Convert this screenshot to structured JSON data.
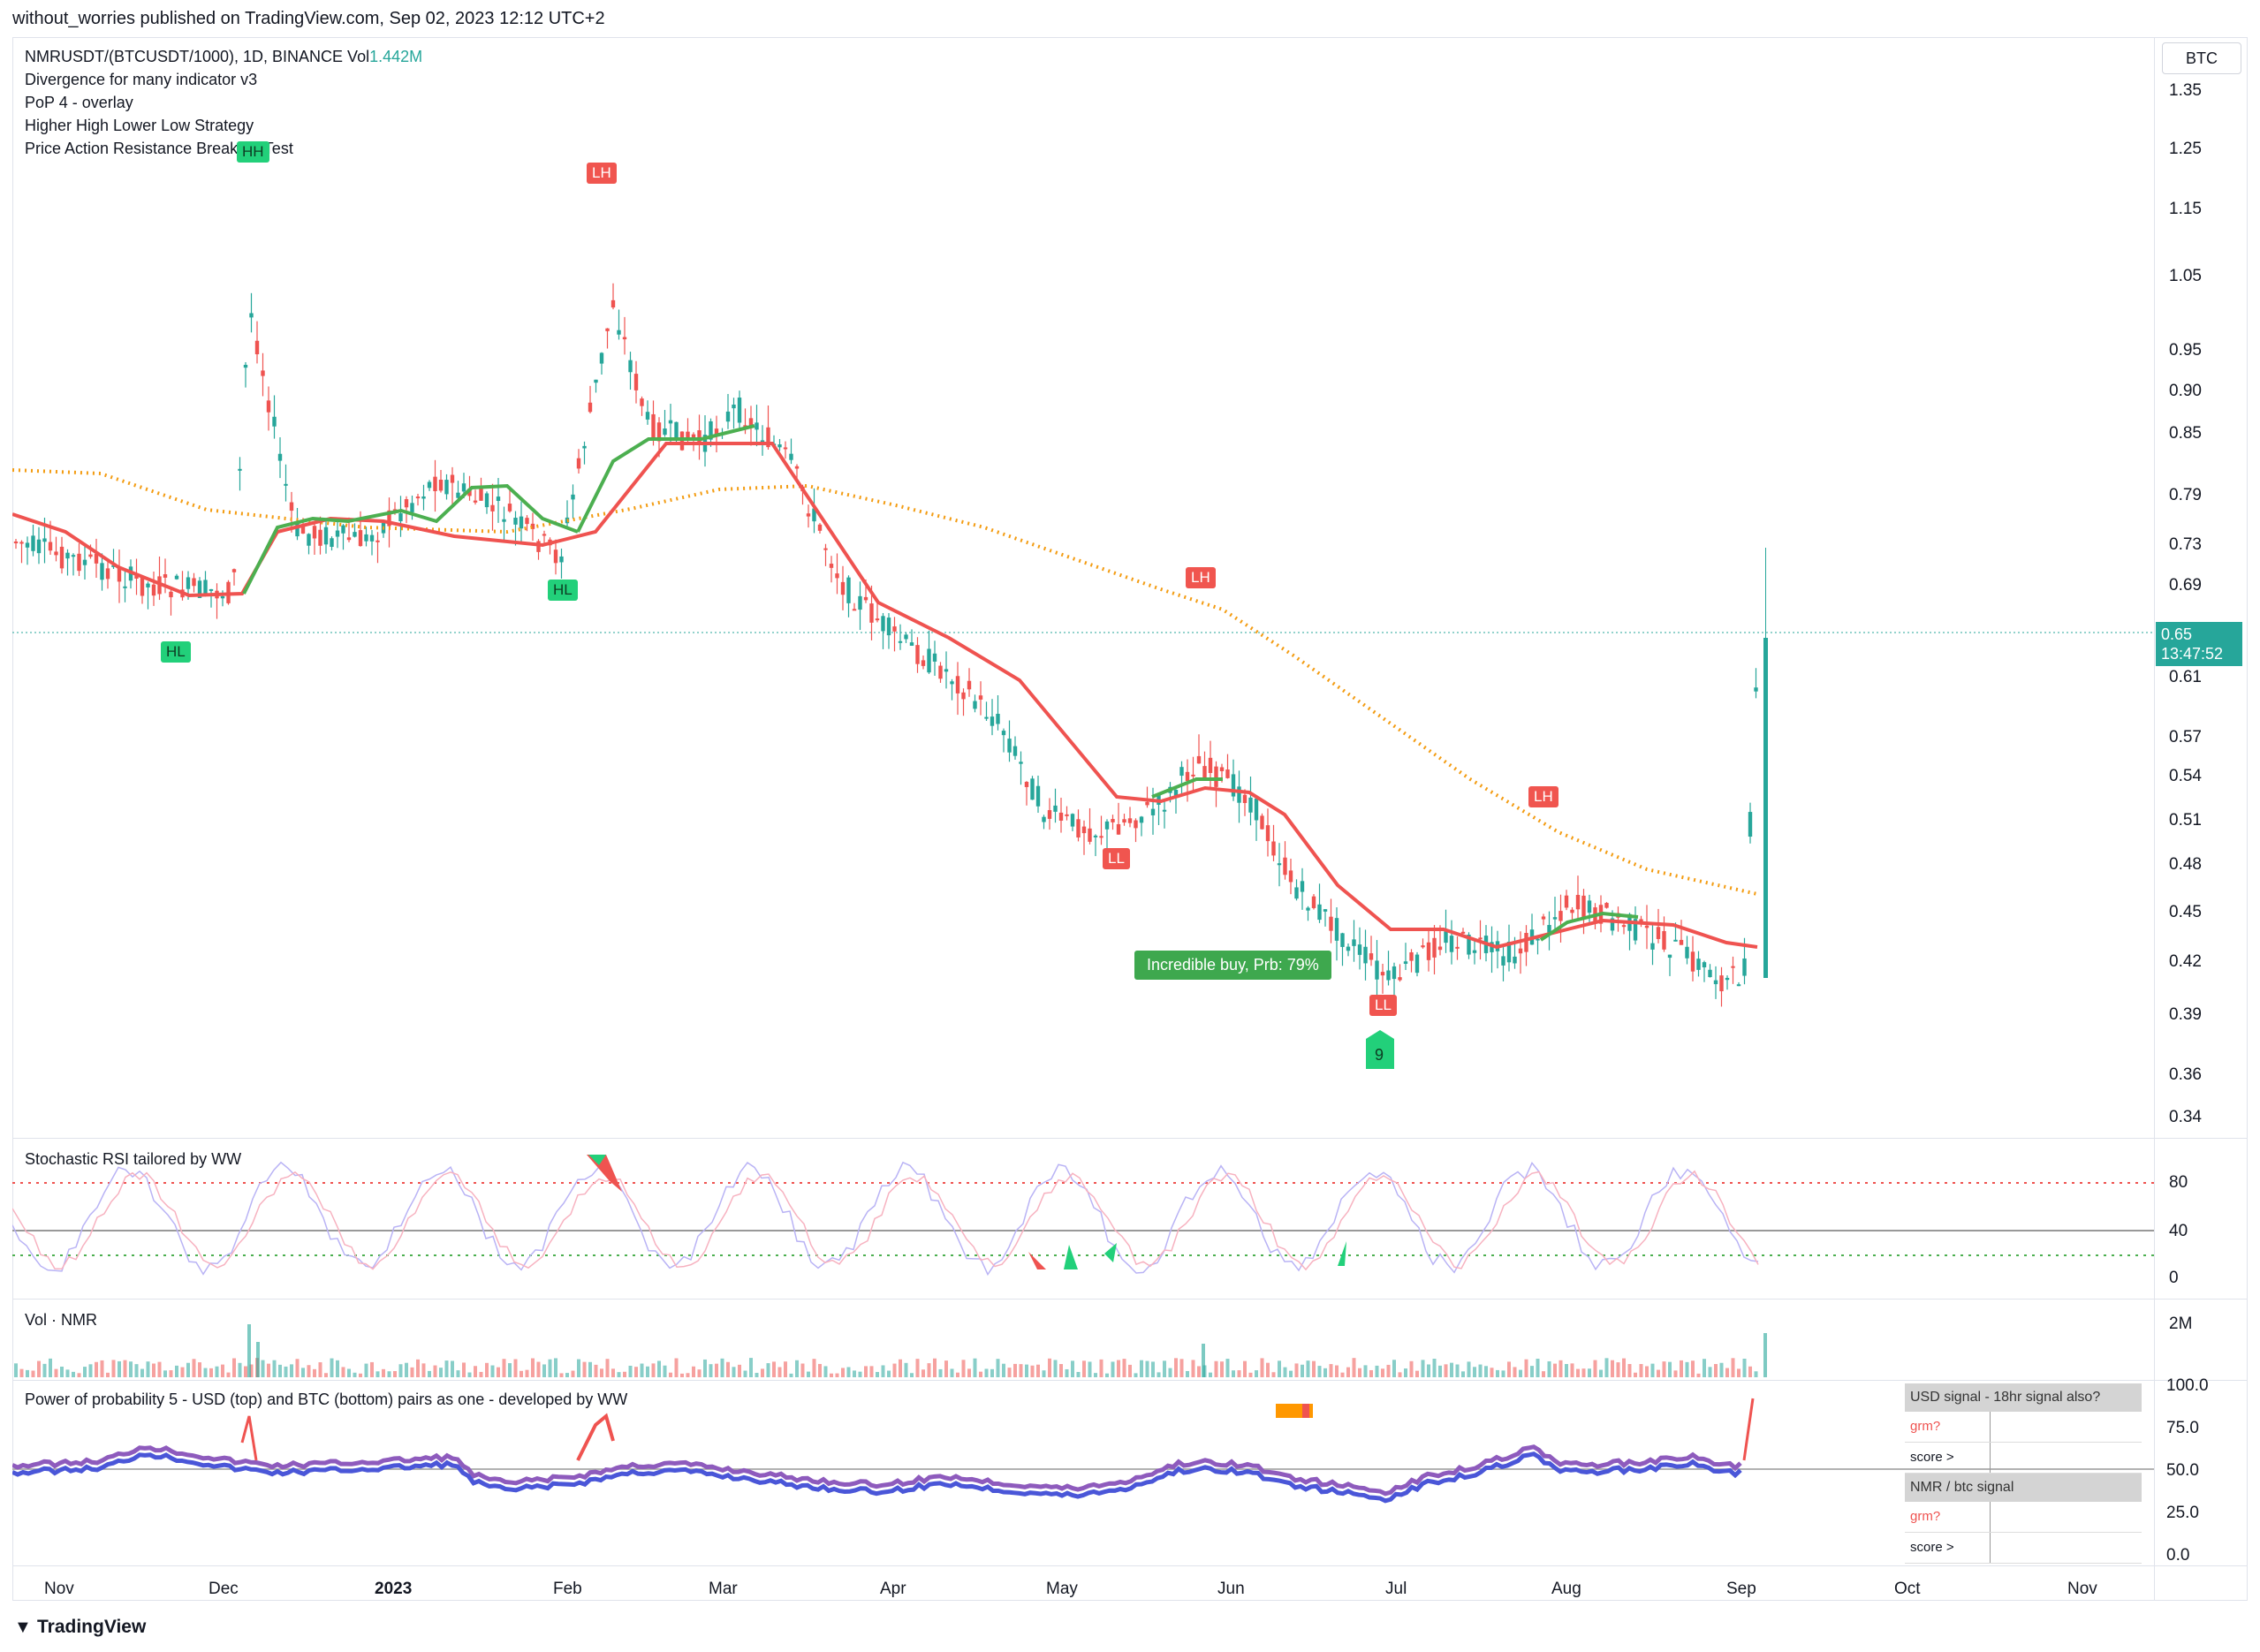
{
  "header": {
    "published_line": "without_worries published on TradingView.com, Sep 02, 2023 12:12 UTC+2"
  },
  "main_pane": {
    "symbol_line": "NMRUSDT/(BTCUSDT/1000), 1D, BINANCE  Vol",
    "vol_value": "1.442M",
    "indicators": [
      "Divergence for many indicator v3",
      "PoP 4 - overlay",
      "Higher High Lower Low Strategy",
      "Price Action Resistance Breakout Test"
    ],
    "currency_button": "BTC",
    "price_axis": [
      "1.35",
      "1.25",
      "1.15",
      "1.05",
      "0.95",
      "0.90",
      "0.85",
      "0.79",
      "0.73",
      "0.69",
      "0.61",
      "0.57",
      "0.54",
      "0.51",
      "0.48",
      "0.45",
      "0.42",
      "0.39",
      "0.36",
      "0.34"
    ],
    "last_price": "0.65",
    "countdown": "13:47:52",
    "signal_tags": [
      "HH",
      "LH",
      "HL",
      "HL",
      "LH",
      "LL",
      "LL",
      "LH"
    ],
    "buy_label": "Incredible buy, Prb: 79%",
    "td_count": "9",
    "colors": {
      "up": "#26a69a",
      "down": "#ef5350",
      "ma_orange": "#f39c12",
      "ma_red": "#ef5350",
      "ma_green": "#4caf50"
    }
  },
  "stoch_pane": {
    "title": "Stochastic RSI tailored by WW",
    "axis": [
      "80",
      "40",
      "0"
    ]
  },
  "volume_pane": {
    "title": "Vol · NMR",
    "axis": [
      "2M"
    ]
  },
  "pop_pane": {
    "title": "Power of probability 5 - USD (top) and BTC (bottom) pairs as one - developed by WW",
    "axis": [
      "100.0",
      "75.0",
      "50.0",
      "25.0",
      "0.0"
    ],
    "table": {
      "usd_header": "USD signal - 18hr signal also?",
      "usd_grm": "grm?",
      "usd_score": "score >",
      "btc_header": "NMR / btc signal",
      "btc_grm": "grm?",
      "btc_score": "score >"
    }
  },
  "time_axis": [
    "Nov",
    "Dec",
    "2023",
    "Feb",
    "Mar",
    "Apr",
    "May",
    "Jun",
    "Jul",
    "Aug",
    "Sep",
    "Oct",
    "Nov"
  ],
  "footer": {
    "brand": "TradingView"
  }
}
